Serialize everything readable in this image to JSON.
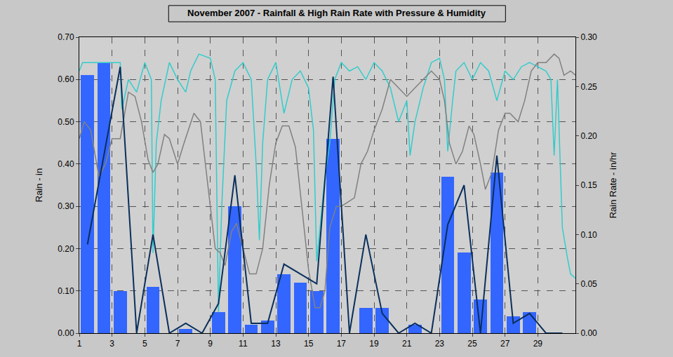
{
  "chart_data": {
    "type": "bar",
    "title": "November 2007 - Rainfall & High Rain Rate with Pressure & Humidity",
    "ylabel": "Rain - in",
    "y2label": "Rain Rate - in/hr",
    "grid": true,
    "xlim": [
      1,
      31.3
    ],
    "xticks": [
      1,
      3,
      5,
      7,
      9,
      11,
      13,
      15,
      17,
      19,
      21,
      23,
      25,
      27,
      29
    ],
    "ylim": [
      0,
      0.7
    ],
    "yticks": [
      {
        "value": 0,
        "label": "0.00"
      },
      {
        "value": 0.1,
        "label": "0.10"
      },
      {
        "value": 0.2,
        "label": "0.20"
      },
      {
        "value": 0.3,
        "label": "0.30"
      },
      {
        "value": 0.4,
        "label": "0.40"
      },
      {
        "value": 0.5,
        "label": "0.50"
      },
      {
        "value": 0.6,
        "label": "0.60"
      },
      {
        "value": 0.7,
        "label": "0.70"
      }
    ],
    "y2lim": [
      0,
      0.3
    ],
    "y2ticks": [
      {
        "value": 0,
        "label": "0.00"
      },
      {
        "value": 0.05,
        "label": "0.05"
      },
      {
        "value": 0.1,
        "label": "0.10"
      },
      {
        "value": 0.15,
        "label": "0.15"
      },
      {
        "value": 0.2,
        "label": "0.20"
      },
      {
        "value": 0.25,
        "label": "0.25"
      },
      {
        "value": 0.3,
        "label": "0.30"
      }
    ],
    "series": [
      {
        "type": "bar",
        "color": "#3366ff",
        "x": [
          1.5,
          2.5,
          3.5,
          4.5,
          5.5,
          6.5,
          7.5,
          8.5,
          9.5,
          10.5,
          11.5,
          12.5,
          13.5,
          14.5,
          15.5,
          16.5,
          17.5,
          18.5,
          19.5,
          20.5,
          21.5,
          22.5,
          23.5,
          24.5,
          25.5,
          26.5,
          27.5,
          28.5,
          29.5,
          30.5
        ],
        "values": [
          0.61,
          0.64,
          0.1,
          0,
          0.11,
          0,
          0.01,
          0,
          0.05,
          0.3,
          0.02,
          0.03,
          0.14,
          0.12,
          0.1,
          0.46,
          0,
          0.06,
          0.06,
          0,
          0.02,
          0,
          0.37,
          0.19,
          0.08,
          0.38,
          0.04,
          0.05,
          0,
          0
        ]
      },
      {
        "type": "line",
        "color": "#33cccc",
        "x": [
          1,
          1.2,
          2,
          3,
          3.5,
          3.6,
          4,
          4.5,
          5,
          5.4,
          5.5,
          5.7,
          6,
          6.5,
          7,
          7.5,
          7.8,
          8.3,
          9,
          9.3,
          9.5,
          9.7,
          10,
          10.5,
          11,
          11.5,
          11.8,
          12,
          12.2,
          12.5,
          13,
          13.5,
          14,
          14.5,
          15,
          15.3,
          15.5,
          15.7,
          16,
          16.3,
          16.6,
          17,
          17.5,
          18,
          18.5,
          19,
          19.5,
          20,
          20.5,
          21,
          21.2,
          21.5,
          22,
          22.5,
          23,
          23.3,
          23.5,
          23.8,
          24,
          24.5,
          25,
          25.5,
          26,
          26.5,
          27,
          27.5,
          28,
          28.5,
          29,
          29.5,
          29.8,
          30,
          30.2,
          30.5,
          30.8,
          31,
          31.3
        ],
        "values": [
          0.62,
          0.64,
          0.64,
          0.64,
          0.64,
          0.53,
          0.6,
          0.57,
          0.64,
          0.6,
          0.19,
          0.45,
          0.55,
          0.64,
          0.6,
          0.57,
          0.62,
          0.66,
          0.65,
          0.6,
          0.05,
          0.3,
          0.55,
          0.62,
          0.64,
          0.6,
          0.4,
          0.22,
          0.45,
          0.6,
          0.64,
          0.52,
          0.6,
          0.62,
          0.58,
          0.48,
          0.17,
          0.25,
          0.37,
          0.45,
          0.6,
          0.64,
          0.62,
          0.63,
          0.6,
          0.64,
          0.62,
          0.58,
          0.5,
          0.55,
          0.42,
          0.5,
          0.58,
          0.64,
          0.65,
          0.6,
          0.43,
          0.55,
          0.62,
          0.64,
          0.6,
          0.64,
          0.62,
          0.55,
          0.62,
          0.6,
          0.63,
          0.64,
          0.63,
          0.62,
          0.6,
          0.42,
          0.6,
          0.25,
          0.18,
          0.14,
          0.13
        ]
      },
      {
        "type": "line",
        "color": "#808080",
        "x": [
          1,
          1.3,
          1.7,
          2.2,
          2.6,
          3,
          3.5,
          4,
          4.4,
          4.8,
          5.2,
          5.5,
          5.8,
          6.2,
          6.5,
          7,
          7.4,
          8,
          8.4,
          9,
          9.3,
          9.6,
          9.9,
          10.3,
          10.6,
          11,
          11.4,
          11.8,
          12.2,
          12.6,
          13,
          13.4,
          13.8,
          14.2,
          14.6,
          15,
          15.4,
          15.7,
          16,
          16.3,
          16.7,
          17,
          17.4,
          17.8,
          18.2,
          18.6,
          19,
          19.5,
          20,
          20.5,
          21,
          21.5,
          22,
          22.5,
          23,
          23.3,
          23.6,
          24,
          24.4,
          24.8,
          25.1,
          25.5,
          25.8,
          26.2,
          26.6,
          27,
          27.3,
          27.8,
          28.2,
          28.6,
          29,
          29.5,
          30,
          30.3,
          30.6,
          31,
          31.3
        ],
        "values": [
          0.46,
          0.5,
          0.48,
          0.37,
          0.4,
          0.46,
          0.46,
          0.57,
          0.56,
          0.5,
          0.41,
          0.38,
          0.4,
          0.47,
          0.46,
          0.4,
          0.45,
          0.52,
          0.5,
          0.3,
          0.2,
          0.19,
          0.16,
          0.24,
          0.26,
          0.2,
          0.14,
          0.14,
          0.2,
          0.35,
          0.45,
          0.49,
          0.49,
          0.44,
          0.3,
          0.15,
          0.06,
          0.06,
          0.1,
          0.25,
          0.3,
          0.3,
          0.31,
          0.32,
          0.4,
          0.43,
          0.48,
          0.53,
          0.6,
          0.58,
          0.56,
          0.58,
          0.6,
          0.62,
          0.6,
          0.55,
          0.45,
          0.4,
          0.43,
          0.49,
          0.47,
          0.4,
          0.34,
          0.38,
          0.48,
          0.52,
          0.52,
          0.5,
          0.55,
          0.62,
          0.64,
          0.64,
          0.66,
          0.65,
          0.61,
          0.62,
          0.61
        ]
      },
      {
        "type": "line",
        "axis": "y2",
        "color": "#0a2f5c",
        "x": [
          1.5,
          2.5,
          3.5,
          4.5,
          5.5,
          6.5,
          7.5,
          8.5,
          9.5,
          10.5,
          11.5,
          12.5,
          13.5,
          14.5,
          15.5,
          16.5,
          17.5,
          18.5,
          19.5,
          20.5,
          21.5,
          22.5,
          23.5,
          24.5,
          25.5,
          26.5,
          27.5,
          28.5,
          29.5,
          30.5
        ],
        "values": [
          0.09,
          0.18,
          0.27,
          0,
          0.1,
          0,
          0.01,
          0,
          0.03,
          0.16,
          0.01,
          0.01,
          0.07,
          0.06,
          0.05,
          0.26,
          0,
          0.1,
          0.02,
          0,
          0.01,
          0,
          0.11,
          0.15,
          0,
          0.18,
          0.01,
          0.02,
          0,
          0
        ]
      }
    ]
  }
}
